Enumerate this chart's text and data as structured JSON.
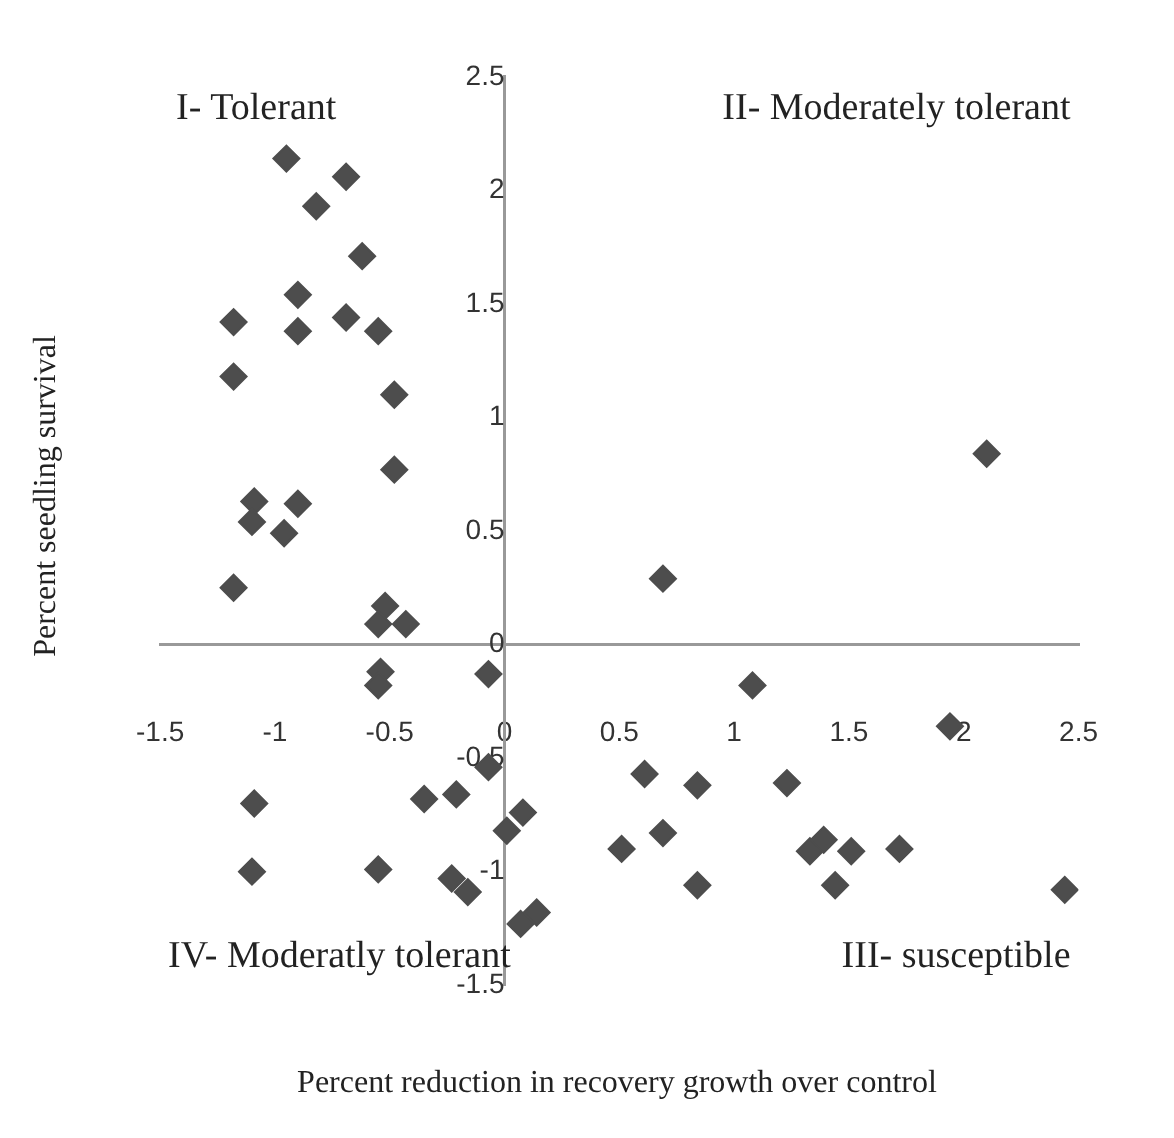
{
  "chart_data": {
    "type": "scatter",
    "xlabel": "Percent reduction in recovery growth over control",
    "ylabel": "Percent seedling survival",
    "annotations": [
      "I- Tolerant",
      "II- Moderately tolerant",
      "III- susceptible",
      "IV- Moderatly tolerant"
    ],
    "xlim": [
      -1.5,
      2.5
    ],
    "xticks": [
      -1.5,
      -1,
      -0.5,
      0,
      0.5,
      1,
      1.5,
      2,
      2.5
    ],
    "ylim": [
      -1.5,
      2.5
    ],
    "yticks": [
      -1.5,
      -1,
      -0.5,
      0,
      0.5,
      1,
      1.5,
      2,
      2.5
    ],
    "grid": false,
    "legend": false,
    "marker": "diamond",
    "series": [
      {
        "color": "#4d4d4d",
        "x": [
          -0.95,
          -0.69,
          -0.82,
          -0.62,
          -0.9,
          -1.18,
          -0.9,
          -0.69,
          -0.55,
          -1.18,
          -0.48,
          -0.48,
          -1.09,
          -0.9,
          -1.1,
          -0.96,
          -1.18,
          -0.52,
          -0.55,
          -0.43,
          -0.54,
          -0.55,
          -0.07,
          -0.07,
          -1.09,
          -0.35,
          -0.21,
          0.08,
          0.01,
          -1.1,
          -0.55,
          -0.23,
          -0.16,
          0.07,
          0.14,
          2.1,
          0.69,
          1.08,
          1.94,
          0.61,
          0.84,
          1.23,
          0.69,
          0.51,
          1.33,
          1.39,
          1.51,
          1.72,
          0.84,
          1.44,
          2.44
        ],
        "values": [
          2.14,
          2.06,
          1.93,
          1.71,
          1.54,
          1.42,
          1.38,
          1.44,
          1.38,
          1.18,
          1.1,
          0.77,
          0.63,
          0.62,
          0.54,
          0.49,
          0.25,
          0.17,
          0.09,
          0.09,
          -0.12,
          -0.18,
          -0.13,
          -0.54,
          -0.7,
          -0.68,
          -0.66,
          -0.74,
          -0.82,
          -1,
          -0.99,
          -1.03,
          -1.09,
          -1.23,
          -1.18,
          0.84,
          0.29,
          -0.18,
          -0.36,
          -0.57,
          -0.62,
          -0.61,
          -0.83,
          -0.9,
          -0.91,
          -0.86,
          -0.91,
          -0.9,
          -1.06,
          -1.06,
          -1.08
        ]
      }
    ]
  }
}
